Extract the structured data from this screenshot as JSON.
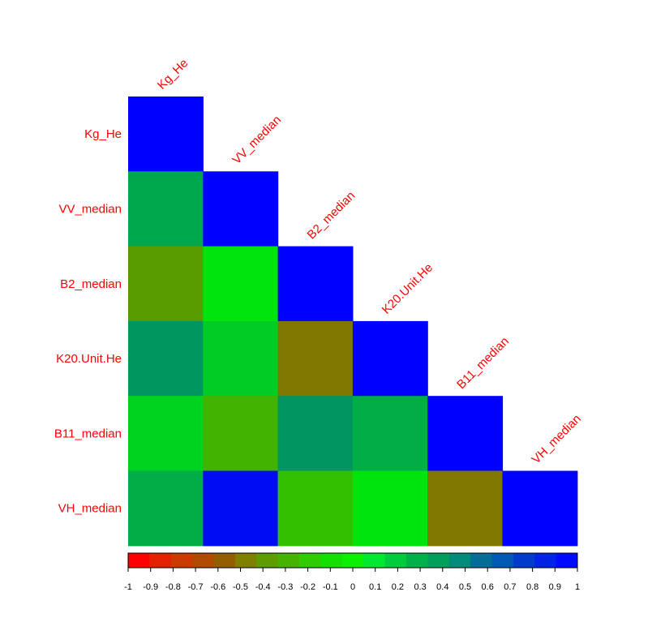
{
  "chart_data": {
    "type": "heatmap",
    "layout": "lower-triangular correlation matrix",
    "variables": [
      "Kg_He",
      "VV_median",
      "B2_median",
      "K20.Unit.He",
      "B11_median",
      "VH_median"
    ],
    "matrix": [
      [
        1.0,
        null,
        null,
        null,
        null,
        null
      ],
      [
        0.3,
        1.0,
        null,
        null,
        null,
        null
      ],
      [
        -0.35,
        0.05,
        1.0,
        null,
        null,
        null
      ],
      [
        0.37,
        0.15,
        -0.5,
        1.0,
        null,
        null
      ],
      [
        0.12,
        -0.25,
        0.38,
        0.28,
        1.0,
        null
      ],
      [
        0.28,
        0.95,
        -0.2,
        0.05,
        -0.5,
        1.0
      ]
    ],
    "colorbar": {
      "range": [
        -1,
        1
      ],
      "tick_labels": [
        "-1",
        "-0.9",
        "-0.8",
        "-0.7",
        "-0.6",
        "-0.5",
        "-0.4",
        "-0.3",
        "-0.2",
        "-0.1",
        "0",
        "0.1",
        "0.2",
        "0.3",
        "0.4",
        "0.5",
        "0.6",
        "0.7",
        "0.8",
        "0.9",
        "1"
      ],
      "colors": [
        "#ff0000",
        "#e32100",
        "#cc3a00",
        "#b14a00",
        "#945e00",
        "#7f7f00",
        "#5d9d00",
        "#45b300",
        "#2ecc00",
        "#14e000",
        "#0bf000",
        "#00e830",
        "#00cc3c",
        "#00b14a",
        "#00a05c",
        "#008c78",
        "#006e96",
        "#005ab3",
        "#003ccc",
        "#0023e6",
        "#000aff"
      ]
    },
    "label_color": "#ff0000"
  }
}
